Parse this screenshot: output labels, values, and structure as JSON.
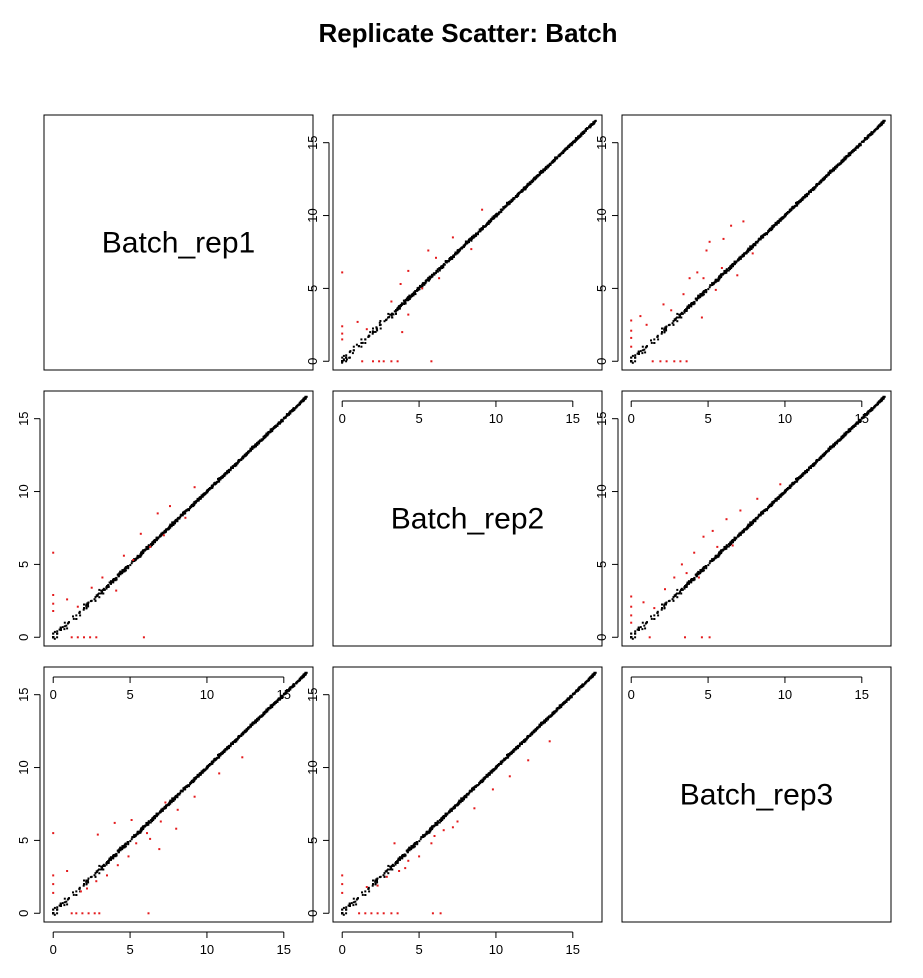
{
  "chart_data": {
    "type": "scatter",
    "title": "Replicate Scatter: Batch",
    "layout": "pairs-matrix",
    "variables": [
      "Batch_rep1",
      "Batch_rep2",
      "Batch_rep3"
    ],
    "axis_range": [
      -0.6,
      16.9
    ],
    "ticks": [
      0,
      5,
      10,
      15
    ],
    "grid": false,
    "point_colors": {
      "normal": "#000000",
      "outlier": "#e41a1c"
    },
    "pairs": [
      {
        "x_var": "Batch_rep2",
        "y_var": "Batch_rep1",
        "description": "rep2 vs rep1",
        "outlier_points": [
          [
            0.0,
            6.1
          ],
          [
            0.0,
            2.4
          ],
          [
            0.0,
            1.9
          ],
          [
            0.0,
            1.5
          ],
          [
            1.0,
            2.7
          ],
          [
            1.3,
            0.0
          ],
          [
            1.6,
            2.2
          ],
          [
            2.0,
            0.0
          ],
          [
            2.4,
            0.0
          ],
          [
            2.7,
            0.0
          ],
          [
            3.2,
            0.0
          ],
          [
            3.6,
            0.0
          ],
          [
            3.9,
            2.0
          ],
          [
            4.3,
            3.2
          ],
          [
            5.8,
            0.0
          ],
          [
            3.2,
            4.1
          ],
          [
            3.8,
            5.3
          ],
          [
            4.3,
            6.2
          ],
          [
            6.1,
            7.1
          ],
          [
            5.2,
            5.0
          ],
          [
            6.3,
            5.7
          ],
          [
            7.2,
            8.5
          ],
          [
            8.4,
            7.7
          ],
          [
            9.1,
            10.4
          ],
          [
            5.6,
            7.6
          ]
        ]
      },
      {
        "x_var": "Batch_rep3",
        "y_var": "Batch_rep1",
        "description": "rep3 vs rep1",
        "outlier_points": [
          [
            0.0,
            2.8
          ],
          [
            0.0,
            2.1
          ],
          [
            0.0,
            1.6
          ],
          [
            0.0,
            1.0
          ],
          [
            0.6,
            3.1
          ],
          [
            1.0,
            2.5
          ],
          [
            1.4,
            0.0
          ],
          [
            1.9,
            0.0
          ],
          [
            2.3,
            0.0
          ],
          [
            2.8,
            0.0
          ],
          [
            3.2,
            0.0
          ],
          [
            3.6,
            0.0
          ],
          [
            2.6,
            3.5
          ],
          [
            3.4,
            4.6
          ],
          [
            3.8,
            5.7
          ],
          [
            4.3,
            6.1
          ],
          [
            4.9,
            7.6
          ],
          [
            5.1,
            8.2
          ],
          [
            6.0,
            8.4
          ],
          [
            6.5,
            9.3
          ],
          [
            7.3,
            9.6
          ],
          [
            4.6,
            3.0
          ],
          [
            5.5,
            4.9
          ],
          [
            6.9,
            5.9
          ],
          [
            7.9,
            7.4
          ],
          [
            2.1,
            3.9
          ],
          [
            4.7,
            5.7
          ],
          [
            5.9,
            6.4
          ]
        ]
      },
      {
        "x_var": "Batch_rep1",
        "y_var": "Batch_rep2",
        "description": "rep1 vs rep2",
        "outlier_points": [
          [
            0.0,
            5.8
          ],
          [
            0.0,
            2.9
          ],
          [
            0.0,
            2.3
          ],
          [
            0.0,
            1.8
          ],
          [
            0.9,
            2.6
          ],
          [
            1.2,
            0.0
          ],
          [
            1.6,
            0.0
          ],
          [
            2.0,
            0.0
          ],
          [
            2.4,
            0.0
          ],
          [
            2.8,
            0.0
          ],
          [
            5.9,
            0.0
          ],
          [
            1.6,
            2.1
          ],
          [
            2.5,
            3.4
          ],
          [
            3.2,
            4.1
          ],
          [
            4.1,
            3.2
          ],
          [
            4.6,
            5.6
          ],
          [
            5.2,
            5.3
          ],
          [
            6.3,
            6.2
          ],
          [
            7.2,
            7.0
          ],
          [
            8.6,
            8.2
          ],
          [
            7.6,
            9.0
          ],
          [
            9.2,
            10.3
          ],
          [
            5.7,
            7.1
          ],
          [
            6.8,
            8.5
          ]
        ]
      },
      {
        "x_var": "Batch_rep3",
        "y_var": "Batch_rep2",
        "description": "rep3 vs rep2",
        "outlier_points": [
          [
            0.0,
            2.8
          ],
          [
            0.0,
            2.1
          ],
          [
            0.0,
            1.5
          ],
          [
            0.0,
            1.0
          ],
          [
            0.8,
            2.4
          ],
          [
            1.2,
            0.0
          ],
          [
            3.5,
            0.0
          ],
          [
            4.6,
            0.0
          ],
          [
            5.1,
            0.0
          ],
          [
            1.5,
            2.0
          ],
          [
            2.2,
            3.3
          ],
          [
            2.8,
            4.1
          ],
          [
            3.3,
            5.0
          ],
          [
            4.1,
            5.8
          ],
          [
            4.7,
            6.9
          ],
          [
            5.3,
            7.3
          ],
          [
            6.2,
            8.1
          ],
          [
            3.6,
            4.4
          ],
          [
            4.4,
            4.1
          ],
          [
            5.6,
            6.2
          ],
          [
            6.6,
            6.3
          ],
          [
            7.1,
            8.7
          ],
          [
            8.2,
            9.5
          ],
          [
            9.7,
            10.5
          ]
        ]
      },
      {
        "x_var": "Batch_rep1",
        "y_var": "Batch_rep3",
        "description": "rep1 vs rep3",
        "outlier_points": [
          [
            0.0,
            5.5
          ],
          [
            0.0,
            2.6
          ],
          [
            0.0,
            2.0
          ],
          [
            0.0,
            1.4
          ],
          [
            0.9,
            2.9
          ],
          [
            1.2,
            0.0
          ],
          [
            1.5,
            0.0
          ],
          [
            1.9,
            0.0
          ],
          [
            2.3,
            0.0
          ],
          [
            2.7,
            0.0
          ],
          [
            3.0,
            0.0
          ],
          [
            6.2,
            0.0
          ],
          [
            1.8,
            1.5
          ],
          [
            2.2,
            1.7
          ],
          [
            2.8,
            2.2
          ],
          [
            3.5,
            2.6
          ],
          [
            4.2,
            3.3
          ],
          [
            4.9,
            3.9
          ],
          [
            5.4,
            4.8
          ],
          [
            6.3,
            5.1
          ],
          [
            7.0,
            6.3
          ],
          [
            8.1,
            7.1
          ],
          [
            9.2,
            8.0
          ],
          [
            10.8,
            9.6
          ],
          [
            12.3,
            10.7
          ],
          [
            2.9,
            5.4
          ],
          [
            4.0,
            6.2
          ],
          [
            5.1,
            6.4
          ],
          [
            6.9,
            4.4
          ],
          [
            8.0,
            5.8
          ],
          [
            6.1,
            5.5
          ],
          [
            7.3,
            7.6
          ]
        ]
      },
      {
        "x_var": "Batch_rep2",
        "y_var": "Batch_rep3",
        "description": "rep2 vs rep3",
        "outlier_points": [
          [
            0.0,
            2.6
          ],
          [
            0.0,
            2.0
          ],
          [
            0.0,
            1.4
          ],
          [
            1.1,
            0.0
          ],
          [
            1.5,
            0.0
          ],
          [
            1.9,
            0.0
          ],
          [
            2.3,
            0.0
          ],
          [
            2.7,
            0.0
          ],
          [
            3.2,
            0.0
          ],
          [
            3.6,
            0.0
          ],
          [
            5.9,
            0.0
          ],
          [
            6.4,
            0.0
          ],
          [
            1.6,
            1.8
          ],
          [
            2.3,
            1.9
          ],
          [
            2.9,
            2.5
          ],
          [
            3.7,
            2.9
          ],
          [
            4.3,
            3.6
          ],
          [
            5.0,
            3.9
          ],
          [
            5.8,
            4.8
          ],
          [
            6.6,
            5.7
          ],
          [
            7.5,
            6.3
          ],
          [
            8.6,
            7.2
          ],
          [
            9.8,
            8.5
          ],
          [
            10.9,
            9.4
          ],
          [
            12.1,
            10.5
          ],
          [
            13.5,
            11.8
          ],
          [
            3.4,
            4.8
          ],
          [
            4.1,
            3.1
          ],
          [
            6.0,
            5.3
          ],
          [
            7.2,
            5.9
          ]
        ]
      }
    ]
  }
}
